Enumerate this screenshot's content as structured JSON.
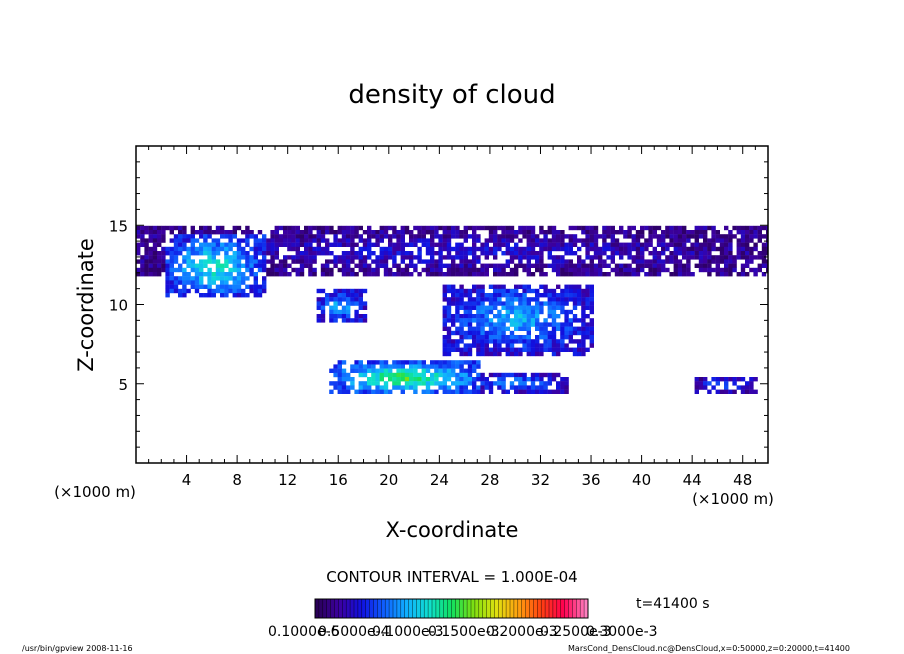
{
  "chart_data": {
    "type": "heatmap",
    "title": "density of cloud",
    "xlabel": "X-coordinate",
    "ylabel": "Z-coordinate",
    "x_unit_label": "(×1000 m)",
    "z_unit_label": "(×1000 m)",
    "xlim": [
      0,
      50
    ],
    "ylim": [
      0,
      20
    ],
    "x_ticks": [
      "4",
      "8",
      "12",
      "16",
      "20",
      "24",
      "28",
      "32",
      "36",
      "40",
      "44",
      "48"
    ],
    "y_ticks": [
      "5",
      "10",
      "15"
    ],
    "contour_interval_label": "CONTOUR INTERVAL = 1.000E-04",
    "time_label": "t=41400 s",
    "colorbar_labels": [
      "0.1000e-6",
      "0.5000e-4",
      "0.1000e-3",
      "0.1500e-3",
      "0.2000e-3",
      "0.2500e-3",
      "0.3000e-3"
    ],
    "colorbar_range": [
      1e-07,
      0.00035
    ],
    "footer_left": "/usr/bin/gpview   2008-11-16",
    "footer_right": "MarsCond_DensCloud.nc@DensCloud,x=0:50000,z=0:20000,t=41400",
    "regions": [
      {
        "x": [
          0,
          50
        ],
        "z": [
          12.0,
          15.0
        ],
        "level": 0.15,
        "desc": "upper cloud layer"
      },
      {
        "x": [
          2,
          10
        ],
        "z": [
          10.5,
          14.5
        ],
        "level": 0.45,
        "desc": "upper dense patch"
      },
      {
        "x": [
          14,
          18
        ],
        "z": [
          9.0,
          11.0
        ],
        "level": 0.35,
        "desc": "mid patch"
      },
      {
        "x": [
          24,
          36
        ],
        "z": [
          7.0,
          11.5
        ],
        "level": 0.35,
        "desc": "central mid layer"
      },
      {
        "x": [
          15,
          27
        ],
        "z": [
          4.5,
          6.5
        ],
        "level": 0.55,
        "desc": "lower dense layer"
      },
      {
        "x": [
          26,
          34
        ],
        "z": [
          4.6,
          5.8
        ],
        "level": 0.3,
        "desc": "lower right patch"
      },
      {
        "x": [
          44,
          49
        ],
        "z": [
          4.6,
          5.6
        ],
        "level": 0.25,
        "desc": "lower far right patch"
      }
    ],
    "grid": false,
    "colormap_colors": [
      "#2a0058",
      "#3c00a0",
      "#1010e0",
      "#1060ff",
      "#10b0ff",
      "#10e0d0",
      "#10e060",
      "#80e010",
      "#e0e010",
      "#ffa010",
      "#ff4010",
      "#ff0050",
      "#ff80c0"
    ]
  }
}
